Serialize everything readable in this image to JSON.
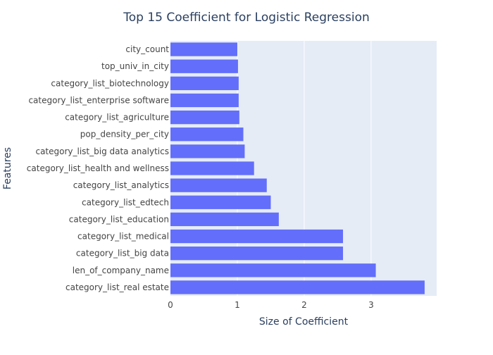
{
  "chart_data": {
    "type": "bar",
    "orientation": "horizontal",
    "title": "Top 15 Coefficient for Logistic Regression",
    "xlabel": "Size of Coefficient",
    "ylabel": "Features",
    "xlim": [
      0,
      3.98
    ],
    "xticks": [
      0,
      1,
      2,
      3
    ],
    "grid": true,
    "legend": "none",
    "categories": [
      "city_count",
      "top_univ_in_city",
      "category_list_biotechnology",
      "category_list_enterprise software",
      "category_list_agriculture",
      "pop_density_per_city",
      "category_list_big data analytics",
      "category_list_health and wellness",
      "category_list_analytics",
      "category_list_edtech",
      "category_list_education",
      "category_list_medical",
      "category_list_big data",
      "len_of_company_name",
      "category_list_real estate"
    ],
    "values": [
      1.0,
      1.01,
      1.02,
      1.02,
      1.03,
      1.09,
      1.11,
      1.25,
      1.44,
      1.5,
      1.62,
      2.58,
      2.58,
      3.07,
      3.8
    ],
    "colors": {
      "bar": "#636efa",
      "plot_bg": "#e5ecf6",
      "grid": "#ffffff",
      "text": "#2a3f5f",
      "tick_text": "#444444"
    }
  }
}
